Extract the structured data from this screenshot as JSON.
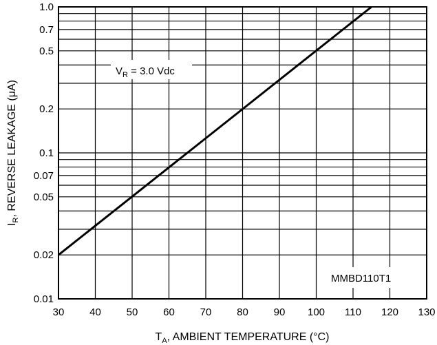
{
  "chart_data": {
    "type": "line",
    "title": "",
    "xlabel": {
      "main": "T",
      "sub": "A",
      "rest": ", AMBIENT TEMPERATURE (°C)"
    },
    "ylabel": {
      "main": "I",
      "sub": "R",
      "rest": ", REVERSE LEAKAGE (μA)"
    },
    "xlim": [
      30,
      130
    ],
    "ylim": [
      0.01,
      1.0
    ],
    "yscale": "log",
    "grid": true,
    "x_ticks": [
      "30",
      "40",
      "50",
      "60",
      "70",
      "80",
      "90",
      "100",
      "110",
      "120",
      "130"
    ],
    "y_ticks": [
      {
        "value": 1.0,
        "label": "1.0"
      },
      {
        "value": 0.7,
        "label": "0.7"
      },
      {
        "value": 0.5,
        "label": "0.5"
      },
      {
        "value": 0.2,
        "label": "0.2"
      },
      {
        "value": 0.1,
        "label": "0.1"
      },
      {
        "value": 0.07,
        "label": "0.07"
      },
      {
        "value": 0.05,
        "label": "0.05"
      },
      {
        "value": 0.02,
        "label": "0.02"
      },
      {
        "value": 0.01,
        "label": "0.01"
      }
    ],
    "y_grid_values": [
      0.01,
      0.02,
      0.03,
      0.04,
      0.05,
      0.06,
      0.07,
      0.08,
      0.09,
      0.1,
      0.2,
      0.3,
      0.4,
      0.5,
      0.6,
      0.7,
      0.8,
      0.9,
      1.0
    ],
    "series": [
      {
        "x": [
          30,
          115
        ],
        "y": [
          0.02,
          1.0
        ]
      }
    ],
    "annotations": [
      {
        "main": "V",
        "sub": "R",
        "rest": " = 3.0 Vdc"
      },
      {
        "text": "MMBD110T1"
      }
    ]
  }
}
